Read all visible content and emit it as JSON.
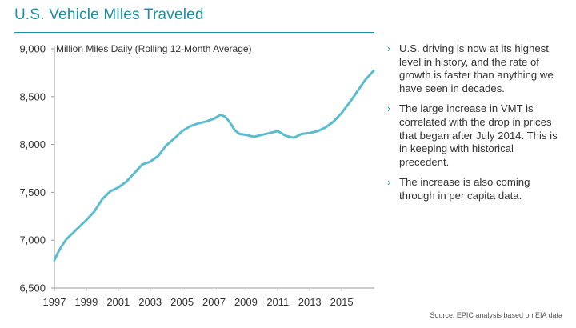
{
  "title": "U.S. Vehicle Miles Traveled",
  "bullets": [
    "U.S. driving is now at its highest level in history, and the rate of growth is faster than anything we have seen in decades.",
    "The large increase in VMT is correlated with the drop in prices that began after July 2014. This is in keeping with historical precedent.",
    "The increase is also coming through in per capita data."
  ],
  "bullet_glyph": "›",
  "source": "Source: EPIC analysis based on EIA data",
  "colors": {
    "accent": "#1b91a8",
    "line": "#5bbccf"
  },
  "chart_data": {
    "type": "line",
    "title": "U.S. Vehicle Miles Traveled",
    "subtitle": "Million Miles Daily (Rolling 12-Month Average)",
    "xlabel": "",
    "ylabel": "",
    "xlim": [
      1997,
      2017.05
    ],
    "ylim": [
      6500,
      9000
    ],
    "x_ticks": [
      1997,
      1999,
      2001,
      2003,
      2005,
      2007,
      2009,
      2011,
      2013,
      2015
    ],
    "x_tick_labels": [
      "1997",
      "1999",
      "2001",
      "2003",
      "2005",
      "2007",
      "2009",
      "2011",
      "2013",
      "2015"
    ],
    "y_ticks": [
      6500,
      7000,
      7500,
      8000,
      8500,
      9000
    ],
    "y_tick_labels": [
      "6,500",
      "7,000",
      "7,500",
      "8,000",
      "8,500",
      "9,000"
    ],
    "grid": false,
    "series": [
      {
        "name": "Million Miles Daily (Rolling 12-Month Average)",
        "x": [
          1997.0,
          1997.25,
          1997.5,
          1997.75,
          1998.0,
          1998.5,
          1999.0,
          1999.5,
          2000.0,
          2000.5,
          2001.0,
          2001.5,
          2002.0,
          2002.5,
          2003.0,
          2003.5,
          2004.0,
          2004.5,
          2005.0,
          2005.5,
          2006.0,
          2006.5,
          2007.0,
          2007.4,
          2007.7,
          2008.0,
          2008.3,
          2008.6,
          2009.0,
          2009.5,
          2010.0,
          2010.5,
          2011.0,
          2011.5,
          2012.0,
          2012.5,
          2013.0,
          2013.5,
          2014.0,
          2014.5,
          2015.0,
          2015.5,
          2016.0,
          2016.5,
          2017.0
        ],
        "values": [
          6790,
          6880,
          6950,
          7010,
          7050,
          7130,
          7210,
          7300,
          7430,
          7510,
          7550,
          7610,
          7700,
          7790,
          7820,
          7880,
          7990,
          8060,
          8140,
          8190,
          8220,
          8240,
          8270,
          8310,
          8290,
          8230,
          8150,
          8110,
          8100,
          8080,
          8100,
          8120,
          8140,
          8090,
          8070,
          8110,
          8120,
          8140,
          8180,
          8240,
          8330,
          8440,
          8560,
          8680,
          8770
        ]
      }
    ]
  }
}
